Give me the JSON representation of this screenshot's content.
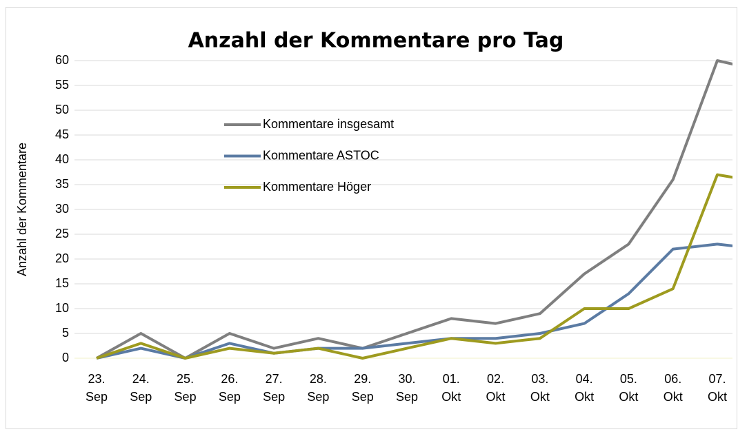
{
  "chart_data": {
    "type": "line",
    "title": "Anzahl der Kommentare pro Tag",
    "y_label": "Anzahl der Kommentare",
    "categories": [
      "23. Sep",
      "24. Sep",
      "25. Sep",
      "26. Sep",
      "27. Sep",
      "28. Sep",
      "29. Sep",
      "30. Sep",
      "01. Okt",
      "02. Okt",
      "03. Okt",
      "04. Okt",
      "05. Okt",
      "06. Okt",
      "07. Okt",
      null
    ],
    "series": [
      {
        "name": "Kommentare insgesamt",
        "color": "#7f7f7f",
        "values": [
          0,
          5,
          0,
          5,
          2,
          4,
          2,
          5,
          8,
          7,
          9,
          17,
          23,
          36,
          60,
          58
        ]
      },
      {
        "name": "Kommentare ASTOC",
        "color": "#5b7ba3",
        "values": [
          0,
          2,
          0,
          3,
          1,
          2,
          2,
          3,
          4,
          4,
          5,
          7,
          13,
          22,
          23,
          22
        ]
      },
      {
        "name": "Kommentare Höger",
        "color": "#9e9b1f",
        "values": [
          0,
          3,
          0,
          2,
          1,
          2,
          0,
          2,
          4,
          3,
          4,
          10,
          10,
          14,
          37,
          35.5
        ]
      }
    ],
    "ylim": [
      0,
      60
    ],
    "yticks": [
      0,
      5,
      10,
      15,
      20,
      25,
      30,
      35,
      40,
      45,
      50,
      55,
      60
    ],
    "grid": true,
    "legend": "upper left"
  }
}
